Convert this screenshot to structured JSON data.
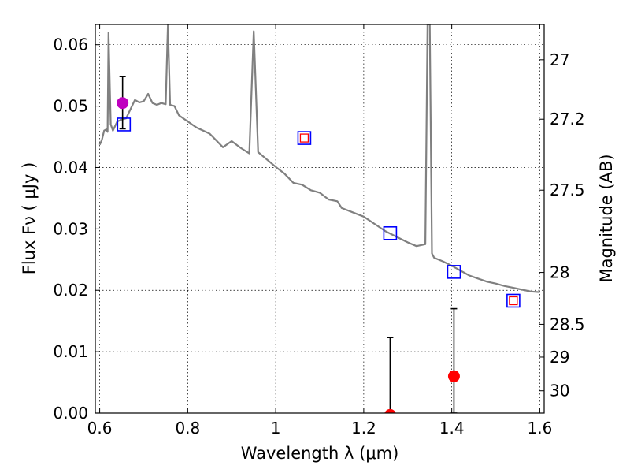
{
  "chart_data": {
    "type": "line",
    "title": "",
    "xlabel": "Wavelength  λ (μm)",
    "ylabel": "Flux  Fν  ( μJy )",
    "ylabel_right": "Magnitude (AB)",
    "xlim": [
      0.59,
      1.61
    ],
    "ylim": [
      0.0,
      0.0633
    ],
    "grid": true,
    "x_ticks": [
      0.6,
      0.8,
      1.0,
      1.2,
      1.4,
      1.6
    ],
    "x_tick_labels": [
      "0.6",
      "0.8",
      "1",
      "1.2",
      "1.4",
      "1.6"
    ],
    "y_ticks": [
      0.0,
      0.01,
      0.02,
      0.03,
      0.04,
      0.05,
      0.06
    ],
    "y_tick_labels": [
      "0.00",
      "0.01",
      "0.02",
      "0.03",
      "0.04",
      "0.05",
      "0.06"
    ],
    "right_axis_ticks": [
      {
        "mag": 27,
        "label": "27"
      },
      {
        "mag": 27.2,
        "label": "27.2"
      },
      {
        "mag": 27.5,
        "label": "27.5"
      },
      {
        "mag": 28,
        "label": "28"
      },
      {
        "mag": 28.5,
        "label": "28.5"
      },
      {
        "mag": 29,
        "label": "29"
      },
      {
        "mag": 30,
        "label": "30"
      }
    ],
    "series": [
      {
        "kind": "model_spectrum",
        "color": "#808080",
        "x": [
          0.6,
          0.605,
          0.61,
          0.615,
          0.618,
          0.62,
          0.625,
          0.63,
          0.64,
          0.65,
          0.66,
          0.67,
          0.68,
          0.69,
          0.7,
          0.71,
          0.72,
          0.73,
          0.74,
          0.75,
          0.755,
          0.76,
          0.77,
          0.78,
          0.8,
          0.82,
          0.85,
          0.88,
          0.9,
          0.92,
          0.94,
          0.95,
          0.96,
          0.98,
          1.0,
          1.02,
          1.04,
          1.06,
          1.08,
          1.1,
          1.12,
          1.14,
          1.15,
          1.2,
          1.25,
          1.3,
          1.32,
          1.34,
          1.345,
          1.35,
          1.355,
          1.36,
          1.38,
          1.4,
          1.42,
          1.44,
          1.46,
          1.48,
          1.5,
          1.52,
          1.54,
          1.56,
          1.58,
          1.6
        ],
        "y": [
          0.0437,
          0.0445,
          0.046,
          0.0462,
          0.0458,
          0.062,
          0.047,
          0.046,
          0.0475,
          0.0478,
          0.048,
          0.0495,
          0.051,
          0.0506,
          0.0508,
          0.052,
          0.0505,
          0.0502,
          0.0505,
          0.0503,
          0.0633,
          0.0502,
          0.05,
          0.0485,
          0.0475,
          0.0465,
          0.0455,
          0.0433,
          0.0443,
          0.0432,
          0.0423,
          0.0622,
          0.0425,
          0.0413,
          0.0401,
          0.039,
          0.0375,
          0.0372,
          0.0363,
          0.0359,
          0.0348,
          0.0345,
          0.0334,
          0.032,
          0.0296,
          0.0278,
          0.0272,
          0.0275,
          0.0633,
          0.0633,
          0.026,
          0.0253,
          0.0247,
          0.024,
          0.0232,
          0.0224,
          0.0219,
          0.0214,
          0.0211,
          0.0207,
          0.0204,
          0.0201,
          0.0198,
          0.0197
        ]
      },
      {
        "kind": "model_photometry_boxes",
        "color": "#0000ff",
        "x": [
          0.655,
          1.065,
          1.26,
          1.405,
          1.54
        ],
        "y": [
          0.047,
          0.0448,
          0.0293,
          0.023,
          0.0183
        ]
      },
      {
        "kind": "upper_limit_boxes",
        "color": "#ff0000",
        "x": [
          1.065,
          1.54
        ],
        "y": [
          0.0448,
          0.0183
        ]
      },
      {
        "kind": "detection",
        "color": "#bf00bf",
        "x": [
          0.652
        ],
        "y": [
          0.0505
        ],
        "err_low": [
          0.0463
        ],
        "err_high": [
          0.0548
        ]
      },
      {
        "kind": "measurement",
        "color": "#ff0000",
        "x": [
          1.26,
          1.405
        ],
        "y": [
          -0.0003,
          0.006
        ],
        "err_low": [
          0.0,
          0.0
        ],
        "err_high": [
          0.0123,
          0.017
        ]
      }
    ]
  }
}
